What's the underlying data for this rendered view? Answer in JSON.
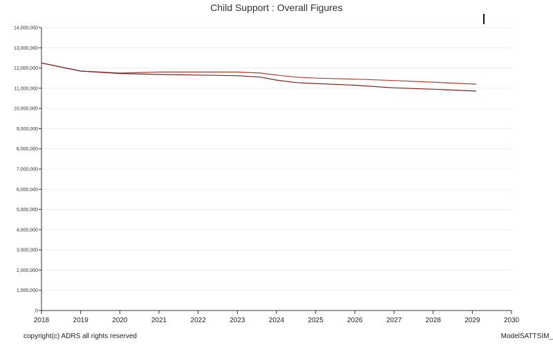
{
  "chart_data": {
    "type": "line",
    "title": "Child Support : Overall Figures",
    "xlabel": "",
    "ylabel": "",
    "xlim": [
      2018,
      2030
    ],
    "ylim": [
      0,
      14000000
    ],
    "x_ticks": [
      "2018",
      "2019",
      "2020",
      "2021",
      "2022",
      "2023",
      "2024",
      "2025",
      "2026",
      "2027",
      "2028",
      "2029",
      "2030"
    ],
    "y_ticks": [
      "0",
      "1,000,000",
      "2,000,000",
      "3,000,000",
      "4,000,000",
      "5,000,000",
      "6,000,000",
      "7,000,000",
      "8,000,000",
      "9,000,000",
      "10,000,000",
      "11,000,000",
      "12,000,000",
      "13,000,000",
      "14,000,000"
    ],
    "grid": "horizontal",
    "legend": "none",
    "series": [
      {
        "color": "#b03a2e",
        "x": [
          2018,
          2019,
          2020,
          2021,
          2022,
          2023,
          2023.6,
          2024,
          2024.5,
          2025,
          2026,
          2027,
          2028,
          2029.1
        ],
        "y": [
          12250000,
          11850000,
          11750000,
          11800000,
          11800000,
          11800000,
          11750000,
          11650000,
          11550000,
          11500000,
          11450000,
          11380000,
          11300000,
          11200000
        ]
      },
      {
        "color": "#7a1f1f",
        "x": [
          2018,
          2019,
          2020,
          2021,
          2022,
          2023,
          2023.6,
          2024,
          2024.5,
          2025,
          2026,
          2027,
          2028,
          2029.1
        ],
        "y": [
          12250000,
          11850000,
          11730000,
          11680000,
          11650000,
          11620000,
          11550000,
          11400000,
          11280000,
          11230000,
          11150000,
          11020000,
          10950000,
          10860000
        ]
      }
    ]
  },
  "footer": {
    "copyright": "copyright(c) ADRS all rights reserved",
    "model": "ModelSATTSIM_"
  }
}
